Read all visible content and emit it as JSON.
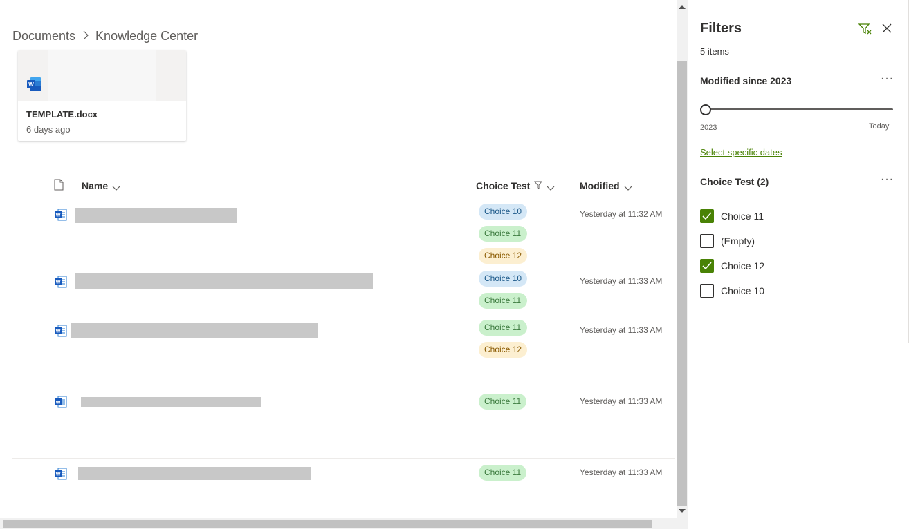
{
  "breadcrumb": {
    "root": "Documents",
    "current": "Knowledge Center"
  },
  "card": {
    "title": "TEMPLATE.docx",
    "subtitle": "6 days ago",
    "icon": "word-icon"
  },
  "columns": {
    "name": "Name",
    "choice": "Choice Test",
    "modified": "Modified"
  },
  "rows": [
    {
      "choices": [
        "Choice 10",
        "Choice 11",
        "Choice 12"
      ],
      "modified": "Yesterday at 11:32 AM"
    },
    {
      "choices": [
        "Choice 10",
        "Choice 11"
      ],
      "modified": "Yesterday at 11:33 AM"
    },
    {
      "choices": [
        "Choice 11",
        "Choice 12"
      ],
      "modified": "Yesterday at 11:33 AM"
    },
    {
      "choices": [
        "Choice 11"
      ],
      "modified": "Yesterday at 11:33 AM"
    },
    {
      "choices": [
        "Choice 11"
      ],
      "modified": "Yesterday at 11:33 AM"
    }
  ],
  "filters": {
    "title": "Filters",
    "count": "5 items",
    "modified_section": {
      "title": "Modified since 2023",
      "more": "···",
      "slider_min": "2023",
      "slider_max": "Today",
      "slider_value": 0,
      "link": "Select specific dates"
    },
    "choice_section": {
      "title": "Choice Test (2)",
      "more": "···",
      "options": [
        {
          "label": "Choice 11",
          "checked": true
        },
        {
          "label": "(Empty)",
          "checked": false
        },
        {
          "label": "Choice 12",
          "checked": true
        },
        {
          "label": "Choice 10",
          "checked": false
        }
      ]
    }
  },
  "colors": {
    "accent_green": "#498205",
    "choice10_bg": "#d4e7f6",
    "choice11_bg": "#caf0cc",
    "choice12_bg": "#fcefd1"
  }
}
